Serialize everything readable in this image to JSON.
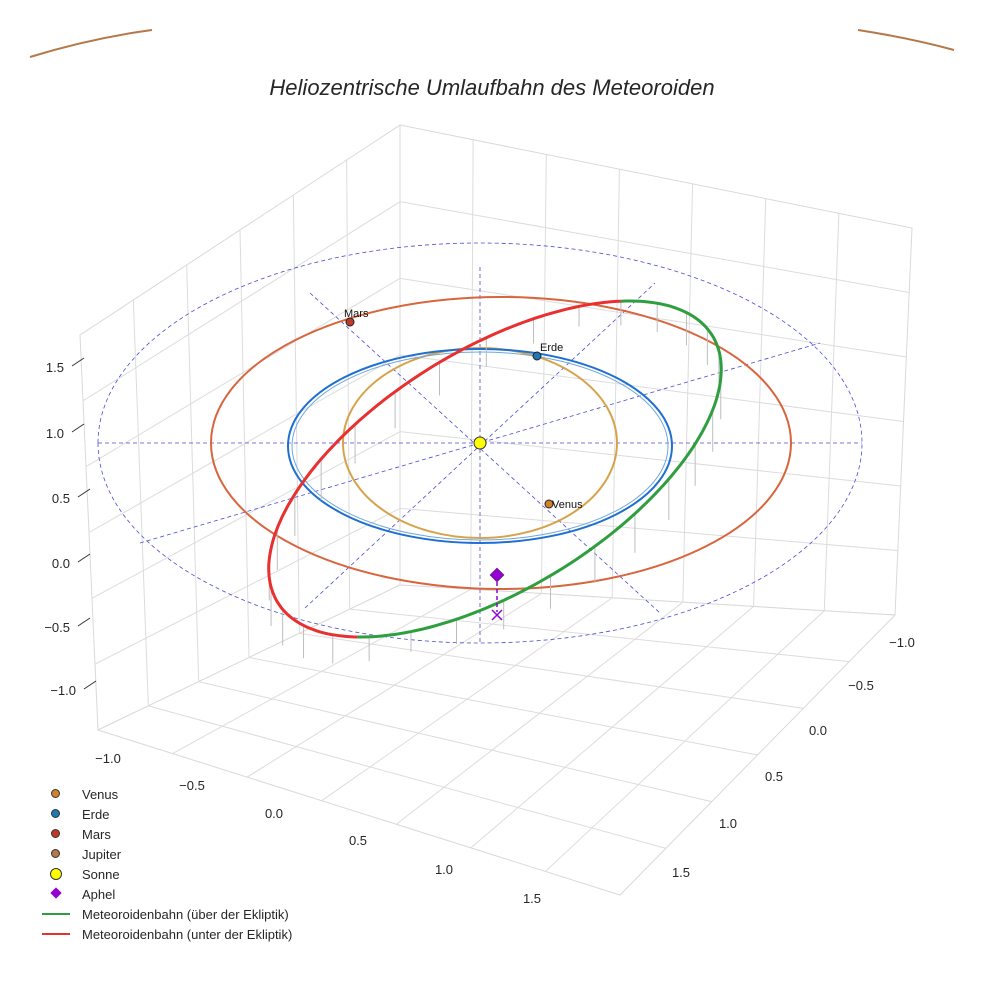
{
  "chart_data": {
    "type": "line3d",
    "title": "Heliozentrische Umlaufbahn des Meteoroiden",
    "xlabel": "",
    "ylabel": "",
    "zlabel": "",
    "x_ticks": [
      "−1.0",
      "−0.5",
      "0.0",
      "0.5",
      "1.0",
      "1.5"
    ],
    "y_ticks": [
      "−1.0",
      "−0.5",
      "0.0",
      "0.5",
      "1.0",
      "1.5"
    ],
    "z_ticks": [
      "1.5",
      "1.0",
      "0.5",
      "0.0",
      "−0.5",
      "−1.0"
    ],
    "planets": [
      {
        "name": "Venus",
        "label": "Venus",
        "color": "#d2822a",
        "orbit_color": "#d8a24a"
      },
      {
        "name": "Erde",
        "label": "Erde",
        "color": "#1f77b4",
        "orbit_color": "#1f6fd0"
      },
      {
        "name": "Mars",
        "label": "Mars",
        "color": "#c0392b",
        "orbit_color": "#d8653e"
      },
      {
        "name": "Jupiter",
        "label": "",
        "color": "#b5784a",
        "orbit_color": "#b5784a"
      }
    ],
    "sun": {
      "name": "Sonne",
      "color": "#ffff00"
    },
    "aphel": {
      "name": "Aphel",
      "color": "#9400d3"
    },
    "series": [
      {
        "name": "Meteoroidenbahn (über der Ekliptik)",
        "color": "#2e9e3e"
      },
      {
        "name": "Meteoroidenbahn (unter der Ekliptik)",
        "color": "#e83030"
      }
    ],
    "legend_position": "bottom-left"
  },
  "legend": [
    {
      "label": "Venus",
      "kind": "dot",
      "color": "#d2822a"
    },
    {
      "label": "Erde",
      "kind": "dot",
      "color": "#1f77b4"
    },
    {
      "label": "Mars",
      "kind": "dot",
      "color": "#c0392b"
    },
    {
      "label": "Jupiter",
      "kind": "dot",
      "color": "#b5784a"
    },
    {
      "label": "Sonne",
      "kind": "sun",
      "color": "#ffff00"
    },
    {
      "label": "Aphel",
      "kind": "diamond",
      "color": "#9400d3"
    },
    {
      "label": "Meteoroidenbahn (über der Ekliptik)",
      "kind": "line",
      "color": "#2e9e3e"
    },
    {
      "label": "Meteoroidenbahn (unter der Ekliptik)",
      "kind": "line",
      "color": "#e83030"
    }
  ]
}
